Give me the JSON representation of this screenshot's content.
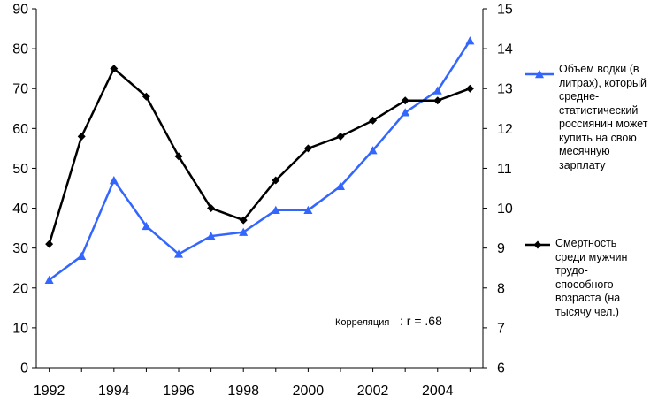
{
  "chart_data": {
    "type": "line",
    "x": [
      1992,
      1993,
      1994,
      1995,
      1996,
      1997,
      1998,
      1999,
      2000,
      2001,
      2002,
      2003,
      2004,
      2005
    ],
    "x_tick_labels": [
      "1992",
      "1994",
      "1996",
      "1998",
      "2000",
      "2002",
      "2004"
    ],
    "xlim": [
      1991.6,
      2005.4
    ],
    "y_left": {
      "ylim": [
        0,
        90
      ],
      "ticks": [
        0,
        10,
        20,
        30,
        40,
        50,
        60,
        70,
        80,
        90
      ]
    },
    "y_right": {
      "ylim": [
        6,
        15
      ],
      "ticks": [
        6,
        7,
        8,
        9,
        10,
        11,
        12,
        13,
        14,
        15
      ]
    },
    "grid": false,
    "legend_position": "right",
    "series": [
      {
        "name": "Объем водки (в\nлитрах), который\nсредне-\nстатистический\nроссиянин может\nкупить на  свою\nмесячную\nзарплату",
        "axis": "left",
        "color": "#3366ff",
        "marker": "triangle",
        "values": [
          22,
          28,
          47,
          35.5,
          28.5,
          33,
          34,
          39.5,
          39.5,
          45.5,
          54.5,
          64,
          69.5,
          82
        ]
      },
      {
        "name": "Смертность\nсреди мужчин\nтрудо-\nспособного\nвозраста (на\nтысячу чел.)",
        "axis": "right",
        "color": "#000000",
        "marker": "diamond",
        "values": [
          9.1,
          11.8,
          13.5,
          12.8,
          11.3,
          10.0,
          9.7,
          10.7,
          11.5,
          11.8,
          12.2,
          12.7,
          12.7,
          13.0
        ]
      }
    ],
    "annotation": {
      "label": "Корреляция",
      "value": ": r = .68"
    }
  }
}
